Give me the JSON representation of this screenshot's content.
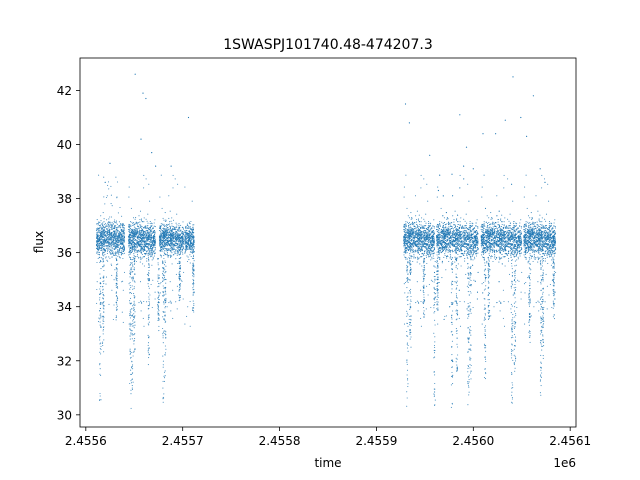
{
  "chart_data": {
    "type": "scatter",
    "title": "1SWASPJ101740.48-474207.3",
    "xlabel": "time",
    "ylabel": "flux",
    "x_offset_label": "1e6",
    "xlim": [
      2455594,
      2456106
    ],
    "ylim": [
      29.55,
      43.2
    ],
    "xticks": [
      2455600,
      2455700,
      2455800,
      2455900,
      2456000,
      2456100
    ],
    "xtick_labels": [
      "2.4556",
      "2.4557",
      "2.4558",
      "2.4559",
      "2.4560",
      "2.4561"
    ],
    "yticks": [
      30,
      32,
      34,
      36,
      38,
      40,
      42
    ],
    "ytick_labels": [
      "30",
      "32",
      "34",
      "36",
      "38",
      "40",
      "42"
    ],
    "grid": false,
    "point_color": "#1f77b4",
    "series": [
      {
        "segments": [
          {
            "x_start": 2455611,
            "x_end": 2455640,
            "median": 36.5,
            "spread": 0.45
          },
          {
            "x_start": 2455644,
            "x_end": 2455672,
            "median": 36.5,
            "spread": 0.45
          },
          {
            "x_start": 2455676,
            "x_end": 2455701,
            "median": 36.5,
            "spread": 0.4
          },
          {
            "x_start": 2455702,
            "x_end": 2455712,
            "median": 36.5,
            "spread": 0.4
          },
          {
            "x_start": 2455928,
            "x_end": 2455960,
            "median": 36.5,
            "spread": 0.45
          },
          {
            "x_start": 2455962,
            "x_end": 2456005,
            "median": 36.5,
            "spread": 0.45
          },
          {
            "x_start": 2456008,
            "x_end": 2456050,
            "median": 36.5,
            "spread": 0.45
          },
          {
            "x_start": 2456052,
            "x_end": 2456085,
            "median": 36.5,
            "spread": 0.45
          }
        ],
        "dips": [
          {
            "x": 2455615,
            "min": 30.2
          },
          {
            "x": 2455618,
            "min": 32.0
          },
          {
            "x": 2455632,
            "min": 33.5
          },
          {
            "x": 2455646,
            "min": 30.1
          },
          {
            "x": 2455648,
            "min": 30.8
          },
          {
            "x": 2455650,
            "min": 32.3
          },
          {
            "x": 2455665,
            "min": 31.7
          },
          {
            "x": 2455675,
            "min": 33.0
          },
          {
            "x": 2455680,
            "min": 30.3
          },
          {
            "x": 2455682,
            "min": 31.2
          },
          {
            "x": 2455697,
            "min": 34.2
          },
          {
            "x": 2455711,
            "min": 33.8
          },
          {
            "x": 2455932,
            "min": 30.3
          },
          {
            "x": 2455935,
            "min": 32.5
          },
          {
            "x": 2455949,
            "min": 33.5
          },
          {
            "x": 2455960,
            "min": 30.1
          },
          {
            "x": 2455963,
            "min": 33.8
          },
          {
            "x": 2455978,
            "min": 30.2
          },
          {
            "x": 2455983,
            "min": 31.5
          },
          {
            "x": 2455995,
            "min": 30.1
          },
          {
            "x": 2455997,
            "min": 31.0
          },
          {
            "x": 2456012,
            "min": 31.3
          },
          {
            "x": 2456016,
            "min": 33.5
          },
          {
            "x": 2456040,
            "min": 30.2
          },
          {
            "x": 2456043,
            "min": 31.3
          },
          {
            "x": 2456058,
            "min": 32.5
          },
          {
            "x": 2456070,
            "min": 30.2
          },
          {
            "x": 2456072,
            "min": 31.8
          },
          {
            "x": 2456083,
            "min": 33.5
          }
        ],
        "outliers": [
          {
            "x": 2455651,
            "y": 42.6
          },
          {
            "x": 2455659,
            "y": 41.9
          },
          {
            "x": 2455662,
            "y": 41.7
          },
          {
            "x": 2455657,
            "y": 40.2
          },
          {
            "x": 2455668,
            "y": 39.7
          },
          {
            "x": 2455672,
            "y": 39.2
          },
          {
            "x": 2455688,
            "y": 39.2
          },
          {
            "x": 2455706,
            "y": 41.0
          },
          {
            "x": 2455625,
            "y": 39.3
          },
          {
            "x": 2455620,
            "y": 38.6
          },
          {
            "x": 2455930,
            "y": 41.5
          },
          {
            "x": 2455934,
            "y": 40.8
          },
          {
            "x": 2455955,
            "y": 39.6
          },
          {
            "x": 2455964,
            "y": 38.3
          },
          {
            "x": 2455969,
            "y": 38.1
          },
          {
            "x": 2455978,
            "y": 38.9
          },
          {
            "x": 2455986,
            "y": 41.1
          },
          {
            "x": 2455990,
            "y": 39.2
          },
          {
            "x": 2455993,
            "y": 39.9
          },
          {
            "x": 2456000,
            "y": 39.1
          },
          {
            "x": 2456010,
            "y": 40.4
          },
          {
            "x": 2456023,
            "y": 40.4
          },
          {
            "x": 2456033,
            "y": 40.9
          },
          {
            "x": 2456041,
            "y": 42.5
          },
          {
            "x": 2456049,
            "y": 41.0
          },
          {
            "x": 2456055,
            "y": 40.3
          },
          {
            "x": 2456062,
            "y": 41.8
          },
          {
            "x": 2456069,
            "y": 39.1
          },
          {
            "x": 2456074,
            "y": 38.6
          }
        ]
      }
    ]
  }
}
